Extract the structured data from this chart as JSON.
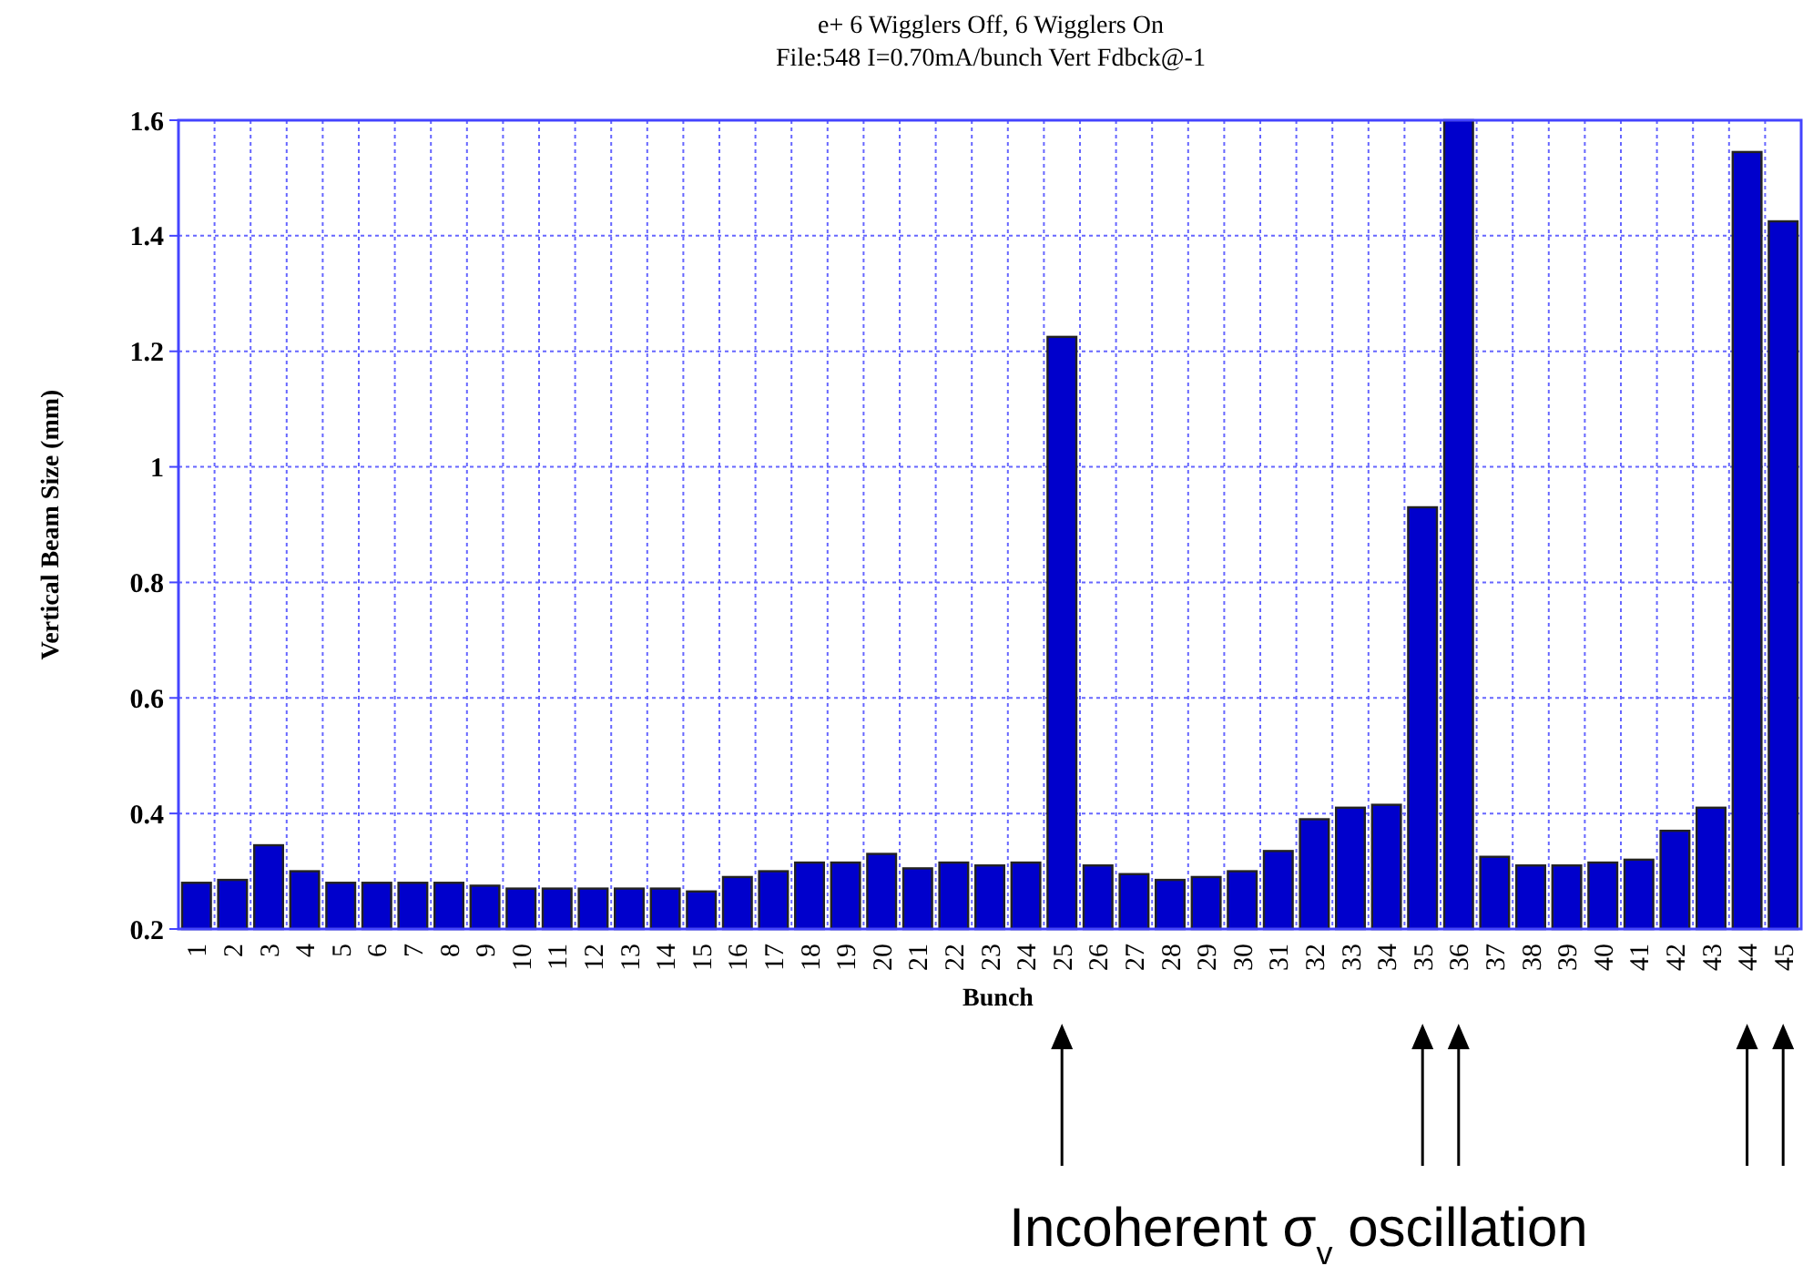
{
  "chart_data": {
    "type": "bar",
    "title": "e+  6 Wigglers Off, 6 Wigglers On",
    "subtitle": "File:548 I=0.70mA/bunch Vert Fdbck@-1",
    "xlabel": "Bunch",
    "ylabel": "Vertical Beam Size (mm)",
    "categories": [
      "1",
      "2",
      "3",
      "4",
      "5",
      "6",
      "7",
      "8",
      "9",
      "10",
      "11",
      "12",
      "13",
      "14",
      "15",
      "16",
      "17",
      "18",
      "19",
      "20",
      "21",
      "22",
      "23",
      "24",
      "25",
      "26",
      "27",
      "28",
      "29",
      "30",
      "31",
      "32",
      "33",
      "34",
      "35",
      "36",
      "37",
      "38",
      "39",
      "40",
      "41",
      "42",
      "43",
      "44",
      "45"
    ],
    "values": [
      0.28,
      0.285,
      0.345,
      0.3,
      0.28,
      0.28,
      0.28,
      0.28,
      0.275,
      0.27,
      0.27,
      0.27,
      0.27,
      0.27,
      0.265,
      0.29,
      0.3,
      0.315,
      0.315,
      0.33,
      0.305,
      0.315,
      0.31,
      0.315,
      1.225,
      0.31,
      0.295,
      0.285,
      0.29,
      0.3,
      0.335,
      0.39,
      0.41,
      0.415,
      0.93,
      1.6,
      0.325,
      0.31,
      0.31,
      0.315,
      0.32,
      0.37,
      0.41,
      1.545,
      1.425
    ],
    "color": "#0000cc",
    "ylim": [
      0.2,
      1.6
    ],
    "yticks": [
      0.2,
      0.4,
      0.6,
      0.8,
      1,
      1.2,
      1.4,
      1.6
    ],
    "grid": true,
    "annotations": [
      "Incoherent σ$_{v}$ oscillation"
    ]
  }
}
